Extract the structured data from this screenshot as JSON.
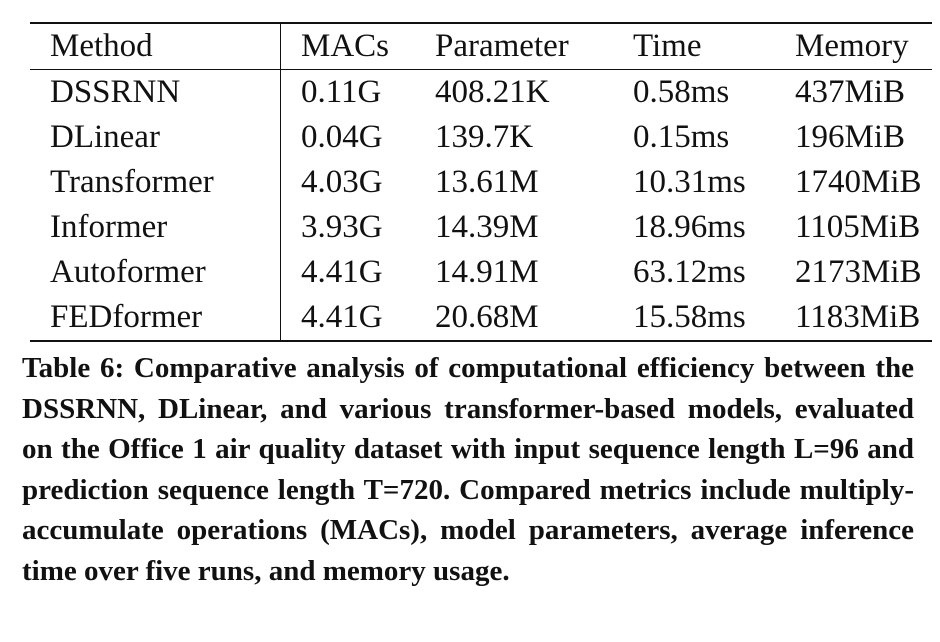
{
  "table": {
    "headers": [
      "Method",
      "MACs",
      "Parameter",
      "Time",
      "Memory"
    ],
    "rows": [
      [
        "DSSRNN",
        "0.11G",
        "408.21K",
        "0.58ms",
        "437MiB"
      ],
      [
        "DLinear",
        "0.04G",
        "139.7K",
        "0.15ms",
        "196MiB"
      ],
      [
        "Transformer",
        "4.03G",
        "13.61M",
        "10.31ms",
        "1740MiB"
      ],
      [
        "Informer",
        "3.93G",
        "14.39M",
        "18.96ms",
        "1105MiB"
      ],
      [
        "Autoformer",
        "4.41G",
        "14.91M",
        "63.12ms",
        "2173MiB"
      ],
      [
        "FEDformer",
        "4.41G",
        "20.68M",
        "15.58ms",
        "1183MiB"
      ]
    ]
  },
  "caption": {
    "label": "Table 6:",
    "text": " Comparative analysis of computational efficiency be­tween the DSSRNN, DLinear, and various transformer-based models, evaluated on the Office 1 air quality dataset with input sequence length L=96 and prediction sequence length T=720. Compared metrics include multiply-accumulate op­erations (MACs), model parameters, average inference time over five runs, and memory usage."
  }
}
